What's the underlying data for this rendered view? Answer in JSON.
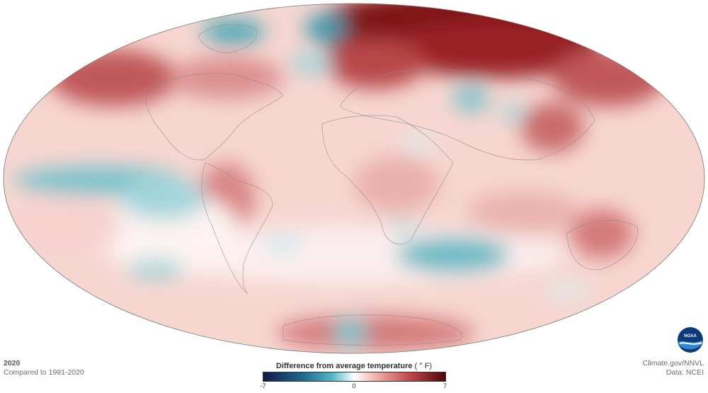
{
  "map": {
    "title": "2020",
    "subtitle": "Compared to 1991-2020"
  },
  "legend": {
    "title": "Difference from average temperature",
    "unit": "( ° F)",
    "min_label": "-7",
    "mid_label": "0",
    "max_label": "7",
    "colors": {
      "coldest": "#0f1d4a",
      "cold": "#56b7c4",
      "neutral": "#ffffff",
      "warm": "#c2494a",
      "warmest": "#4e0408"
    }
  },
  "credits": {
    "source": "Climate.gov/NNVL",
    "data": "Data: NCEI"
  },
  "logo": {
    "name": "noaa-logo",
    "text": "NOAA"
  }
}
